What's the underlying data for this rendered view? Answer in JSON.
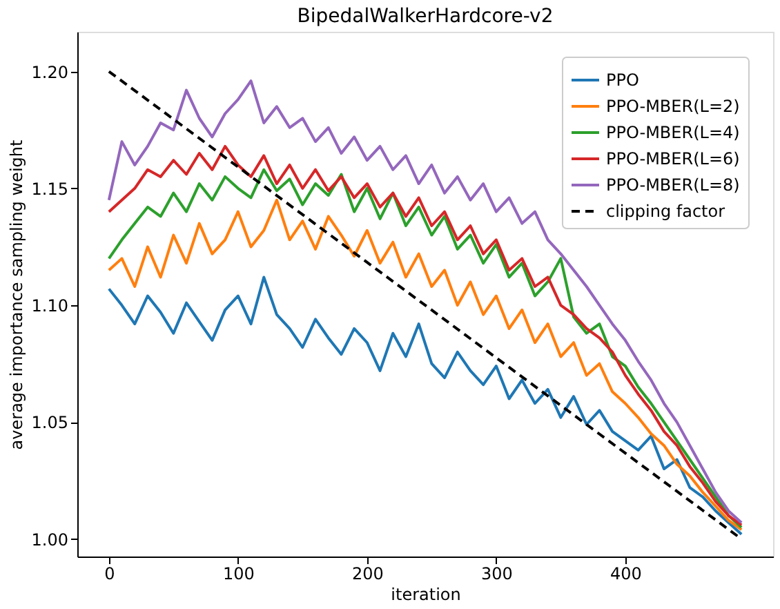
{
  "chart_data": {
    "type": "line",
    "title": "BipedalWalkerHardcore-v2",
    "xlabel": "iteration",
    "ylabel": "average importance sampling weight",
    "x": [
      0,
      10,
      20,
      30,
      40,
      50,
      60,
      70,
      80,
      90,
      100,
      110,
      120,
      130,
      140,
      150,
      160,
      170,
      180,
      190,
      200,
      210,
      220,
      230,
      240,
      250,
      260,
      270,
      280,
      290,
      300,
      310,
      320,
      330,
      340,
      350,
      360,
      370,
      380,
      390,
      400,
      410,
      420,
      430,
      440,
      450,
      460,
      470,
      480,
      490
    ],
    "series": [
      {
        "name": "PPO",
        "color": "#1f77b4",
        "values": [
          1.107,
          1.1,
          1.092,
          1.104,
          1.097,
          1.088,
          1.101,
          1.093,
          1.085,
          1.098,
          1.104,
          1.092,
          1.112,
          1.096,
          1.09,
          1.082,
          1.094,
          1.086,
          1.079,
          1.09,
          1.084,
          1.072,
          1.088,
          1.078,
          1.092,
          1.075,
          1.069,
          1.08,
          1.072,
          1.066,
          1.074,
          1.06,
          1.068,
          1.058,
          1.064,
          1.052,
          1.061,
          1.049,
          1.055,
          1.046,
          1.042,
          1.038,
          1.044,
          1.03,
          1.034,
          1.022,
          1.018,
          1.012,
          1.007,
          1.002
        ]
      },
      {
        "name": "PPO-MBER(L=2)",
        "color": "#ff7f0e",
        "values": [
          1.115,
          1.12,
          1.108,
          1.125,
          1.112,
          1.13,
          1.118,
          1.135,
          1.122,
          1.128,
          1.14,
          1.125,
          1.132,
          1.145,
          1.128,
          1.136,
          1.124,
          1.138,
          1.13,
          1.121,
          1.132,
          1.118,
          1.127,
          1.112,
          1.122,
          1.108,
          1.115,
          1.1,
          1.11,
          1.096,
          1.104,
          1.09,
          1.098,
          1.084,
          1.092,
          1.078,
          1.084,
          1.07,
          1.075,
          1.063,
          1.058,
          1.052,
          1.045,
          1.04,
          1.032,
          1.027,
          1.02,
          1.014,
          1.008,
          1.004
        ]
      },
      {
        "name": "PPO-MBER(L=4)",
        "color": "#2ca02c",
        "values": [
          1.12,
          1.128,
          1.135,
          1.142,
          1.138,
          1.148,
          1.14,
          1.152,
          1.145,
          1.155,
          1.15,
          1.146,
          1.158,
          1.149,
          1.154,
          1.143,
          1.152,
          1.147,
          1.156,
          1.14,
          1.15,
          1.137,
          1.148,
          1.134,
          1.142,
          1.13,
          1.138,
          1.124,
          1.13,
          1.118,
          1.126,
          1.112,
          1.118,
          1.104,
          1.11,
          1.12,
          1.095,
          1.088,
          1.092,
          1.078,
          1.074,
          1.065,
          1.058,
          1.05,
          1.042,
          1.034,
          1.026,
          1.018,
          1.01,
          1.005
        ]
      },
      {
        "name": "PPO-MBER(L=6)",
        "color": "#d62728",
        "values": [
          1.14,
          1.145,
          1.15,
          1.158,
          1.155,
          1.162,
          1.156,
          1.165,
          1.158,
          1.168,
          1.16,
          1.155,
          1.164,
          1.152,
          1.16,
          1.15,
          1.158,
          1.149,
          1.155,
          1.146,
          1.152,
          1.142,
          1.148,
          1.138,
          1.146,
          1.134,
          1.14,
          1.128,
          1.134,
          1.122,
          1.128,
          1.115,
          1.12,
          1.108,
          1.112,
          1.1,
          1.096,
          1.09,
          1.086,
          1.08,
          1.07,
          1.062,
          1.055,
          1.046,
          1.04,
          1.031,
          1.024,
          1.016,
          1.01,
          1.006
        ]
      },
      {
        "name": "PPO-MBER(L=8)",
        "color": "#9467bd",
        "values": [
          1.145,
          1.17,
          1.16,
          1.168,
          1.178,
          1.175,
          1.192,
          1.18,
          1.172,
          1.182,
          1.188,
          1.196,
          1.178,
          1.185,
          1.176,
          1.18,
          1.17,
          1.176,
          1.165,
          1.172,
          1.162,
          1.168,
          1.158,
          1.164,
          1.152,
          1.16,
          1.148,
          1.155,
          1.145,
          1.152,
          1.14,
          1.146,
          1.135,
          1.14,
          1.128,
          1.122,
          1.115,
          1.108,
          1.1,
          1.092,
          1.085,
          1.076,
          1.068,
          1.058,
          1.05,
          1.04,
          1.03,
          1.02,
          1.012,
          1.007
        ]
      },
      {
        "name": "clipping factor",
        "color": "#000000",
        "line_style": "dashed",
        "x": [
          0,
          490
        ],
        "values": [
          1.2,
          1.0
        ]
      }
    ],
    "xlim": [
      -24.5,
      514.5
    ],
    "ylim": [
      0.9925,
      1.217
    ],
    "xticks": [
      0,
      100,
      200,
      300,
      400
    ],
    "yticks": [
      {
        "value": 1.0,
        "label": "1.00"
      },
      {
        "value": 1.05,
        "label": "1.05"
      },
      {
        "value": 1.1,
        "label": "1.10"
      },
      {
        "value": 1.15,
        "label": "1.15"
      },
      {
        "value": 1.2,
        "label": "1.20"
      }
    ],
    "grid": false,
    "legend": "top right",
    "line_style": "solid"
  }
}
